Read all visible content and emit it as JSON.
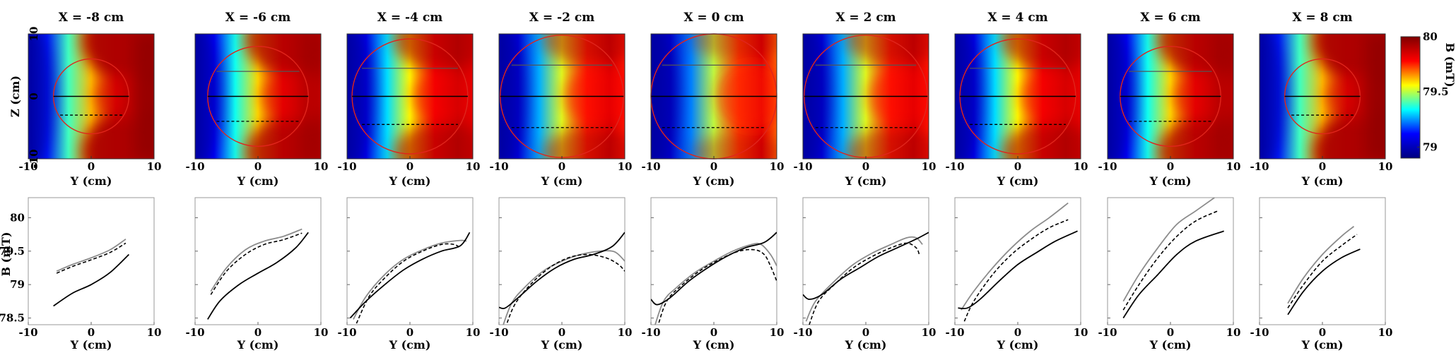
{
  "figure": {
    "heatmap_ylabel": "Z (cm)",
    "heatmap_xlabel": "Y (cm)",
    "line_ylabel": "B (mT)",
    "line_xlabel": "Y (cm)",
    "colorbar_label": "B (mT)",
    "colorbar_ticks": [
      "80",
      "79.5",
      "79"
    ],
    "colormap": [
      "#00007f",
      "#0000ff",
      "#00ffff",
      "#ffff00",
      "#ff0000",
      "#7f0000"
    ],
    "circle_color": "#e0251c"
  },
  "chart_data": [
    {
      "type": "heatmap",
      "description": "Top row: magnetic field magnitude maps in the Y-Z plane for each X slice",
      "xlabel": "Y (cm)",
      "ylabel": "Z (cm)",
      "xlim": [
        -10,
        10
      ],
      "ylim": [
        -10,
        10
      ],
      "xticks": [
        "-10",
        "0",
        "10"
      ],
      "yticks": [
        "10",
        "0",
        "-10"
      ],
      "colorbar": {
        "label": "B (mT)",
        "range": [
          78.9,
          80
        ],
        "ticks": [
          "80",
          "79.5",
          "79"
        ]
      },
      "panels": [
        {
          "title": "X = -8 cm",
          "x": -8,
          "circle_radius": 6,
          "cut_z": {
            "upper": null,
            "middle": 0,
            "lower": -3
          }
        },
        {
          "title": "X = -6 cm",
          "x": -6,
          "circle_radius": 8,
          "cut_z": {
            "upper": 4,
            "middle": 0,
            "lower": -4
          }
        },
        {
          "title": "X = -4 cm",
          "x": -4,
          "circle_radius": 9.2,
          "cut_z": {
            "upper": 4.5,
            "middle": 0,
            "lower": -4.5
          }
        },
        {
          "title": "X = -2 cm",
          "x": -2,
          "circle_radius": 9.8,
          "cut_z": {
            "upper": 5,
            "middle": 0,
            "lower": -5
          }
        },
        {
          "title": "X = 0 cm",
          "x": 0,
          "circle_radius": 10,
          "cut_z": {
            "upper": 5,
            "middle": 0,
            "lower": -5
          }
        },
        {
          "title": "X = 2 cm",
          "x": 2,
          "circle_radius": 9.8,
          "cut_z": {
            "upper": 5,
            "middle": 0,
            "lower": -5
          }
        },
        {
          "title": "X = 4 cm",
          "x": 4,
          "circle_radius": 9.2,
          "cut_z": {
            "upper": 4.5,
            "middle": 0,
            "lower": -4.5
          }
        },
        {
          "title": "X = 6 cm",
          "x": 6,
          "circle_radius": 8,
          "cut_z": {
            "upper": 4,
            "middle": 0,
            "lower": -4
          }
        },
        {
          "title": "X = 8 cm",
          "x": 8,
          "circle_radius": 6,
          "cut_z": {
            "upper": null,
            "middle": 0,
            "lower": -3
          }
        }
      ]
    },
    {
      "type": "line",
      "description": "Bottom row: B along Y on the three cut lines (black solid = middle, gray = upper, dashed = lower)",
      "xlabel": "Y (cm)",
      "ylabel": "B (mT)",
      "xlim": [
        -10,
        10
      ],
      "ylim": [
        78.4,
        80.3
      ],
      "xticks": [
        "-10",
        "0",
        "10"
      ],
      "yticks": [
        "80",
        "79.5",
        "79",
        "78.5"
      ],
      "series_styles": {
        "black": "solid #000000",
        "gray": "solid #8c8c8c",
        "dashed": "dashed #000000"
      },
      "panels": [
        {
          "title": "X = -8 cm",
          "black": [
            [
              -6,
              78.68
            ],
            [
              -3,
              78.87
            ],
            [
              0,
              79.0
            ],
            [
              3,
              79.18
            ],
            [
              6,
              79.45
            ]
          ],
          "gray": [
            [
              -5.5,
              79.2
            ],
            [
              -3,
              79.3
            ],
            [
              0,
              79.4
            ],
            [
              3,
              79.52
            ],
            [
              5.5,
              79.68
            ]
          ],
          "dashed": [
            [
              -5.5,
              79.17
            ],
            [
              -3,
              79.27
            ],
            [
              0,
              79.37
            ],
            [
              3,
              79.48
            ],
            [
              5.5,
              79.62
            ]
          ]
        },
        {
          "title": "X = -6 cm",
          "black": [
            [
              -8,
              78.48
            ],
            [
              -6,
              78.76
            ],
            [
              -3,
              79.0
            ],
            [
              0,
              79.17
            ],
            [
              3,
              79.33
            ],
            [
              6,
              79.55
            ],
            [
              8,
              79.78
            ]
          ],
          "gray": [
            [
              -7.5,
              78.9
            ],
            [
              -5,
              79.25
            ],
            [
              -2,
              79.52
            ],
            [
              1,
              79.65
            ],
            [
              4,
              79.72
            ],
            [
              7,
              79.83
            ]
          ],
          "dashed": [
            [
              -7.5,
              78.85
            ],
            [
              -5,
              79.2
            ],
            [
              -2,
              79.45
            ],
            [
              1,
              79.6
            ],
            [
              4,
              79.67
            ],
            [
              7,
              79.77
            ]
          ]
        },
        {
          "title": "X = -4 cm",
          "black": [
            [
              -9.5,
              78.5
            ],
            [
              -7,
              78.75
            ],
            [
              -4,
              79.0
            ],
            [
              -1,
              79.22
            ],
            [
              2,
              79.38
            ],
            [
              5,
              79.5
            ],
            [
              8,
              79.58
            ],
            [
              9.5,
              79.78
            ]
          ],
          "gray": [
            [
              -9,
              78.48
            ],
            [
              -7,
              78.82
            ],
            [
              -4,
              79.15
            ],
            [
              -1,
              79.38
            ],
            [
              2,
              79.52
            ],
            [
              5,
              79.62
            ],
            [
              8,
              79.66
            ],
            [
              9,
              79.65
            ]
          ],
          "dashed": [
            [
              -8.5,
              78.42
            ],
            [
              -6.5,
              78.82
            ],
            [
              -4,
              79.1
            ],
            [
              -1,
              79.35
            ],
            [
              2,
              79.5
            ],
            [
              5,
              79.6
            ],
            [
              7,
              79.6
            ],
            [
              8,
              79.55
            ]
          ]
        },
        {
          "title": "X = -2 cm",
          "black": [
            [
              -10,
              78.66
            ],
            [
              -9,
              78.65
            ],
            [
              -7,
              78.8
            ],
            [
              -4,
              79.05
            ],
            [
              -1,
              79.25
            ],
            [
              2,
              79.38
            ],
            [
              5,
              79.45
            ],
            [
              8,
              79.57
            ],
            [
              10,
              79.78
            ]
          ],
          "gray": [
            [
              -9.5,
              78.35
            ],
            [
              -8,
              78.72
            ],
            [
              -6,
              78.95
            ],
            [
              -3,
              79.2
            ],
            [
              0,
              79.35
            ],
            [
              3,
              79.45
            ],
            [
              6,
              79.5
            ],
            [
              8,
              79.5
            ],
            [
              9,
              79.45
            ],
            [
              10,
              79.35
            ]
          ],
          "dashed": [
            [
              -9,
              78.35
            ],
            [
              -7.5,
              78.7
            ],
            [
              -5,
              79.0
            ],
            [
              -2,
              79.25
            ],
            [
              1,
              79.4
            ],
            [
              4,
              79.45
            ],
            [
              7,
              79.4
            ],
            [
              9,
              79.3
            ],
            [
              10,
              79.2
            ]
          ]
        },
        {
          "title": "X = 0 cm",
          "black": [
            [
              -10,
              78.78
            ],
            [
              -9,
              78.7
            ],
            [
              -7,
              78.8
            ],
            [
              -4,
              79.05
            ],
            [
              -1,
              79.25
            ],
            [
              2,
              79.42
            ],
            [
              5,
              79.55
            ],
            [
              8,
              79.63
            ],
            [
              10,
              79.78
            ]
          ],
          "gray": [
            [
              -9.5,
              78.35
            ],
            [
              -8,
              78.75
            ],
            [
              -6,
              78.95
            ],
            [
              -3,
              79.18
            ],
            [
              0,
              79.35
            ],
            [
              3,
              79.5
            ],
            [
              6,
              79.6
            ],
            [
              7.5,
              79.6
            ],
            [
              9,
              79.45
            ],
            [
              10,
              79.28
            ]
          ],
          "dashed": [
            [
              -9,
              78.35
            ],
            [
              -7.5,
              78.75
            ],
            [
              -5,
              79.0
            ],
            [
              -2,
              79.22
            ],
            [
              1,
              79.38
            ],
            [
              4,
              79.5
            ],
            [
              6.5,
              79.52
            ],
            [
              8,
              79.45
            ],
            [
              9,
              79.28
            ],
            [
              10,
              79.05
            ]
          ]
        },
        {
          "title": "X = 2 cm",
          "black": [
            [
              -10,
              78.85
            ],
            [
              -9,
              78.78
            ],
            [
              -7,
              78.85
            ],
            [
              -4,
              79.08
            ],
            [
              -1,
              79.25
            ],
            [
              2,
              79.42
            ],
            [
              5,
              79.55
            ],
            [
              8,
              79.68
            ],
            [
              10,
              79.78
            ]
          ],
          "gray": [
            [
              -9.5,
              78.45
            ],
            [
              -8,
              78.75
            ],
            [
              -5,
              79.05
            ],
            [
              -2,
              79.3
            ],
            [
              1,
              79.47
            ],
            [
              4,
              79.6
            ],
            [
              6.5,
              79.7
            ],
            [
              8,
              79.7
            ],
            [
              9,
              79.6
            ]
          ],
          "dashed": [
            [
              -9,
              78.4
            ],
            [
              -7.5,
              78.75
            ],
            [
              -5,
              79.0
            ],
            [
              -2,
              79.25
            ],
            [
              1,
              79.42
            ],
            [
              4,
              79.55
            ],
            [
              6.5,
              79.62
            ],
            [
              8,
              79.55
            ],
            [
              8.5,
              79.45
            ]
          ]
        },
        {
          "title": "X = 4 cm",
          "black": [
            [
              -9.5,
              78.65
            ],
            [
              -8,
              78.65
            ],
            [
              -6,
              78.78
            ],
            [
              -3,
              79.05
            ],
            [
              0,
              79.3
            ],
            [
              3,
              79.48
            ],
            [
              6,
              79.65
            ],
            [
              9.5,
              79.8
            ]
          ],
          "gray": [
            [
              -9,
              78.62
            ],
            [
              -7,
              78.9
            ],
            [
              -4,
              79.25
            ],
            [
              -1,
              79.55
            ],
            [
              2,
              79.8
            ],
            [
              5,
              80.0
            ],
            [
              8,
              80.22
            ]
          ],
          "dashed": [
            [
              -8.5,
              78.45
            ],
            [
              -7,
              78.75
            ],
            [
              -4,
              79.15
            ],
            [
              -1,
              79.45
            ],
            [
              2,
              79.67
            ],
            [
              5,
              79.85
            ],
            [
              8,
              79.97
            ]
          ]
        },
        {
          "title": "X = 6 cm",
          "black": [
            [
              -7.5,
              78.5
            ],
            [
              -5,
              78.85
            ],
            [
              -2,
              79.15
            ],
            [
              1,
              79.45
            ],
            [
              4,
              79.65
            ],
            [
              8.5,
              79.8
            ]
          ],
          "gray": [
            [
              -7.5,
              78.75
            ],
            [
              -5,
              79.15
            ],
            [
              -2,
              79.55
            ],
            [
              1,
              79.9
            ],
            [
              4,
              80.1
            ],
            [
              7,
              80.3
            ]
          ],
          "dashed": [
            [
              -7.5,
              78.62
            ],
            [
              -5,
              79.0
            ],
            [
              -2,
              79.4
            ],
            [
              1,
              79.72
            ],
            [
              4,
              79.95
            ],
            [
              7.5,
              80.1
            ]
          ]
        },
        {
          "title": "X = 8 cm",
          "black": [
            [
              -5.5,
              78.55
            ],
            [
              -3,
              78.9
            ],
            [
              0,
              79.2
            ],
            [
              3,
              79.4
            ],
            [
              6,
              79.53
            ]
          ],
          "gray": [
            [
              -5.5,
              78.72
            ],
            [
              -3,
              79.1
            ],
            [
              0,
              79.45
            ],
            [
              3,
              79.72
            ],
            [
              5,
              79.87
            ]
          ],
          "dashed": [
            [
              -5.5,
              78.65
            ],
            [
              -3,
              79.0
            ],
            [
              0,
              79.35
            ],
            [
              3,
              79.58
            ],
            [
              5.5,
              79.75
            ]
          ]
        }
      ]
    }
  ]
}
